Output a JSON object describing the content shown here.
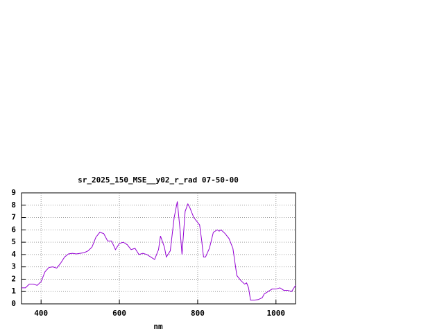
{
  "chart_data": {
    "type": "line",
    "title": "sr_2025_150_MSE__y02_r_rad 07-50-00",
    "x_label": "nm",
    "x": [
      350,
      360,
      370,
      380,
      390,
      400,
      410,
      420,
      430,
      440,
      450,
      460,
      470,
      480,
      490,
      500,
      510,
      520,
      530,
      540,
      550,
      560,
      570,
      580,
      590,
      600,
      610,
      620,
      630,
      640,
      650,
      660,
      670,
      680,
      690,
      700,
      705,
      715,
      720,
      730,
      740,
      748,
      755,
      760,
      768,
      775,
      780,
      790,
      800,
      805,
      810,
      815,
      820,
      830,
      840,
      850,
      855,
      860,
      870,
      880,
      890,
      900,
      910,
      920,
      925,
      930,
      935,
      945,
      955,
      965,
      970,
      980,
      990,
      1000,
      1010,
      1020,
      1030,
      1040,
      1050
    ],
    "series": [
      {
        "color": "#9400d3",
        "values": [
          1.3,
          1.3,
          1.6,
          1.6,
          1.5,
          1.8,
          2.6,
          2.95,
          3.0,
          2.9,
          3.3,
          3.8,
          4.05,
          4.1,
          4.05,
          4.1,
          4.15,
          4.3,
          4.6,
          5.4,
          5.8,
          5.7,
          5.1,
          5.1,
          4.4,
          4.9,
          5.0,
          4.8,
          4.4,
          4.5,
          4.0,
          4.1,
          4.0,
          3.8,
          3.6,
          4.4,
          5.5,
          4.6,
          3.8,
          4.3,
          7.0,
          8.3,
          6.0,
          4.0,
          7.5,
          8.1,
          7.8,
          7.0,
          6.6,
          6.4,
          5.2,
          3.8,
          3.8,
          4.5,
          5.8,
          6.0,
          5.9,
          6.0,
          5.7,
          5.3,
          4.5,
          2.3,
          1.9,
          1.6,
          1.7,
          1.3,
          0.3,
          0.3,
          0.35,
          0.5,
          0.8,
          1.0,
          1.2,
          1.2,
          1.3,
          1.1,
          1.1,
          1.0,
          1.5
        ]
      }
    ],
    "xlim": [
      350,
      1050
    ],
    "ylim": [
      0,
      9
    ],
    "xticks": [
      400,
      600,
      800,
      1000
    ],
    "yticks": [
      0,
      1,
      2,
      3,
      4,
      5,
      6,
      7,
      8,
      9
    ],
    "grid": true
  }
}
